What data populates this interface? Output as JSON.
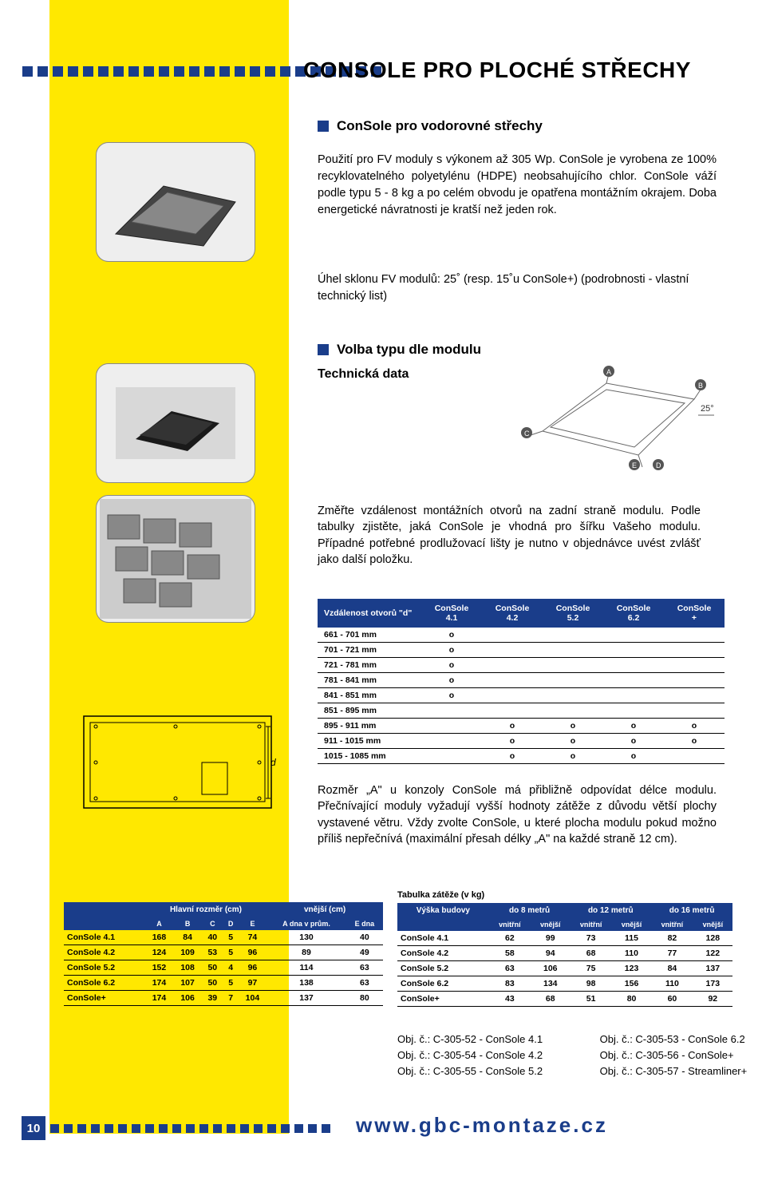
{
  "page": {
    "title": "CONSOLE PRO PLOCHÉ STŘECHY",
    "number": "10",
    "footer_url": "www.gbc-montaze.cz"
  },
  "section1": {
    "heading": "ConSole pro vodorovné střechy",
    "body": "Použití pro FV moduly s výkonem až 305 Wp. ConSole je vyrobena ze 100% recyklovatelného polyetylénu (HDPE) neobsahujícího chlor. ConSole váží podle typu 5 - 8 kg a po celém obvodu je opatřena montážním okrajem. Doba energetické návratnosti je kratší než jeden rok.",
    "note": "Úhel sklonu FV modulů: 25˚ (resp. 15˚u ConSole+) (podrobnosti - vlastní technický list)"
  },
  "section2": {
    "heading": "Volba typu dle modulu",
    "subheading": "Technická data",
    "body": "Změřte vzdálenost montážních otvorů na zadní straně modulu. Podle tabulky zjistěte, jaká ConSole je vhodná pro šířku Vašeho modulu. Případné potřebné prodlužovací lišty je nutno v objednávce uvést zvlášť jako další položku."
  },
  "techdraw": {
    "labels": [
      "A",
      "B",
      "C",
      "D",
      "E",
      "25°"
    ]
  },
  "compat": {
    "header_dist": "Vzdálenost otvorů \"d\"",
    "cols": [
      "ConSole 4.1",
      "ConSole 4.2",
      "ConSole 5.2",
      "ConSole 6.2",
      "ConSole +"
    ],
    "rows": [
      {
        "range": "661 - 701 mm",
        "marks": [
          "o",
          "",
          "",
          "",
          ""
        ]
      },
      {
        "range": "701 - 721 mm",
        "marks": [
          "o",
          "",
          "",
          "",
          ""
        ]
      },
      {
        "range": "721 - 781 mm",
        "marks": [
          "o",
          "",
          "",
          "",
          ""
        ]
      },
      {
        "range": "781 - 841 mm",
        "marks": [
          "o",
          "",
          "",
          "",
          ""
        ]
      },
      {
        "range": "841 - 851 mm",
        "marks": [
          "o",
          "",
          "",
          "",
          ""
        ]
      },
      {
        "range": "851 - 895 mm",
        "marks": [
          "",
          "",
          "",
          "",
          ""
        ]
      },
      {
        "range": "895 - 911 mm",
        "marks": [
          "",
          "o",
          "o",
          "o",
          "o"
        ]
      },
      {
        "range": "911 - 1015 mm",
        "marks": [
          "",
          "o",
          "o",
          "o",
          "o"
        ]
      },
      {
        "range": "1015 - 1085 mm",
        "marks": [
          "",
          "o",
          "o",
          "o",
          ""
        ]
      }
    ]
  },
  "note_a": "Rozměr „A\" u konzoly ConSole má přibližně odpovídat délce modulu. Přečnívající moduly vyžadují vyšší hodnoty zátěže z důvodu větší plochy vystavené větru. Vždy zvolte ConSole, u které plocha modulu pokud možno příliš nepřečnívá (maximální přesah délky „A\" na každé straně 12 cm).",
  "dims": {
    "title_main": "Hlavní rozměr (cm)",
    "title_outer": "vnější (cm)",
    "cols": [
      "A",
      "B",
      "C",
      "D",
      "E",
      "A dna v prům.",
      "E dna"
    ],
    "rows": [
      {
        "name": "ConSole 4.1",
        "v": [
          "168",
          "84",
          "40",
          "5",
          "74",
          "130",
          "40"
        ]
      },
      {
        "name": "ConSole 4.2",
        "v": [
          "124",
          "109",
          "53",
          "5",
          "96",
          "89",
          "49"
        ]
      },
      {
        "name": "ConSole 5.2",
        "v": [
          "152",
          "108",
          "50",
          "4",
          "96",
          "114",
          "63"
        ]
      },
      {
        "name": "ConSole 6.2",
        "v": [
          "174",
          "107",
          "50",
          "5",
          "97",
          "138",
          "63"
        ]
      },
      {
        "name": "ConSole+",
        "v": [
          "174",
          "106",
          "39",
          "7",
          "104",
          "137",
          "80"
        ]
      }
    ]
  },
  "loads": {
    "title": "Tabulka zátěže (v kg)",
    "header_height": "Výška budovy",
    "groups": [
      "do 8 metrů",
      "do 12 metrů",
      "do 16 metrů"
    ],
    "sub": [
      "vnitřní",
      "vnější"
    ],
    "rows": [
      {
        "name": "ConSole 4.1",
        "v": [
          "62",
          "99",
          "73",
          "115",
          "82",
          "128"
        ]
      },
      {
        "name": "ConSole 4.2",
        "v": [
          "58",
          "94",
          "68",
          "110",
          "77",
          "122"
        ]
      },
      {
        "name": "ConSole 5.2",
        "v": [
          "63",
          "106",
          "75",
          "123",
          "84",
          "137"
        ]
      },
      {
        "name": "ConSole 6.2",
        "v": [
          "83",
          "134",
          "98",
          "156",
          "110",
          "173"
        ]
      },
      {
        "name": "ConSole+",
        "v": [
          "43",
          "68",
          "51",
          "80",
          "60",
          "92"
        ]
      }
    ]
  },
  "orders": {
    "col1": [
      "Obj. č.: C-305-52 - ConSole  4.1",
      "Obj. č.: C-305-54 - ConSole  4.2",
      "Obj. č.: C-305-55 - ConSole  5.2"
    ],
    "col2": [
      "Obj. č.: C-305-53 - ConSole  6.2",
      "Obj. č.: C-305-56 - ConSole+",
      "Obj. č.: C-305-57 - Streamliner+"
    ]
  },
  "diagram_label": "d",
  "colors": {
    "brand_blue": "#1a3d8a",
    "sidebar_yellow": "#ffe800"
  }
}
